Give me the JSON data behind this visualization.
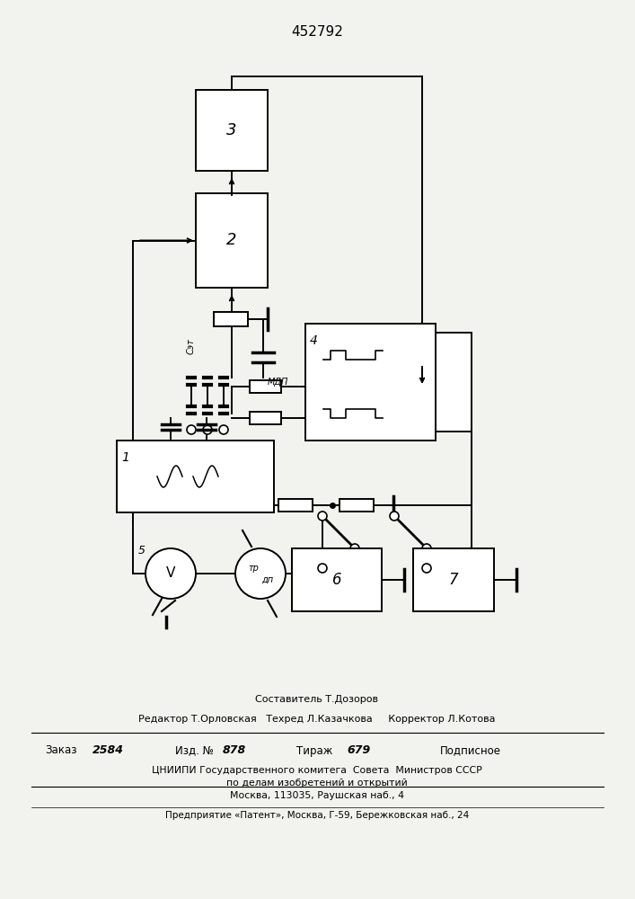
{
  "title": "452792",
  "bg_color": "#f2f2ee",
  "line_color": "#000000",
  "text_color": "#000000",
  "footer": {
    "line1": "Составитель Т.Дозоров",
    "line2": "Редактор Т.Орловская   Техред Л.Казачкова     Корректор Л.Котова",
    "zakaz": "Заказ",
    "zakaz_num": "2584",
    "izd": "Изд. №",
    "izd_num": "878",
    "tirazh": "Тираж",
    "tirazh_num": "679",
    "podpisnoe": "Подписное",
    "cniip1": "ЦНИИПИ Государственного комитега  Совета  Министров СССР",
    "cniip2": "по делам изобретений и открытий",
    "cniip3": "Москва, 113035, Раушская наб., 4",
    "patent": "Предприятие «Патент», Москва, Г-59, Бережковская наб., 24"
  }
}
